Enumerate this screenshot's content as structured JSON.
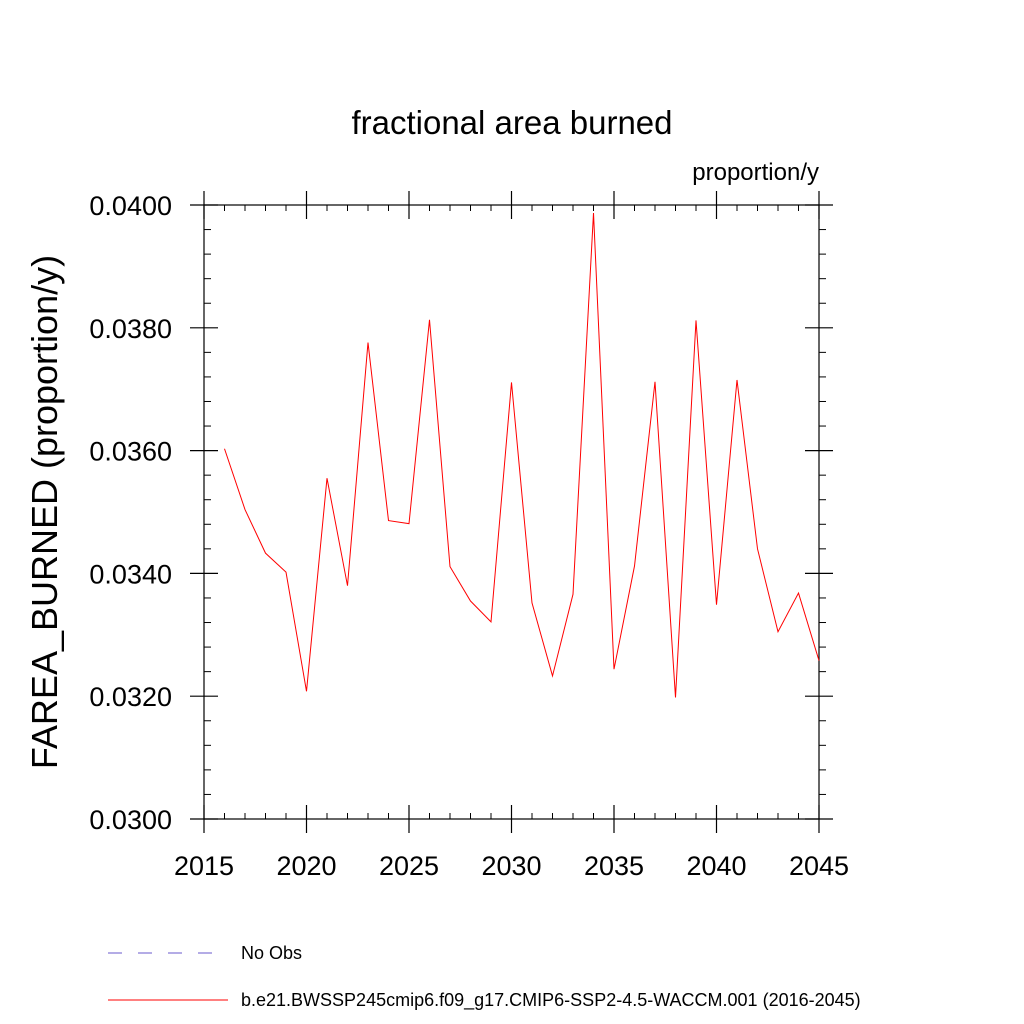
{
  "chart_data": {
    "type": "line",
    "title": "fractional area burned",
    "units_label": "proportion/y",
    "ylabel": "FAREA_BURNED  (proportion/y)",
    "xlabel": "",
    "xlim": [
      2015,
      2045
    ],
    "ylim": [
      0.03,
      0.04
    ],
    "x_ticks": [
      2015,
      2020,
      2025,
      2030,
      2035,
      2040,
      2045
    ],
    "x_tick_labels": [
      "2015",
      "2020",
      "2025",
      "2030",
      "2035",
      "2040",
      "2045"
    ],
    "y_ticks": [
      0.03,
      0.032,
      0.034,
      0.036,
      0.038,
      0.04
    ],
    "y_tick_labels": [
      "0.0300",
      "0.0320",
      "0.0340",
      "0.0360",
      "0.0380",
      "0.0400"
    ],
    "grid": false,
    "legend_position": "bottom",
    "series": [
      {
        "name": "b.e21.BWSSP245cmip6.f09_g17.CMIP6-SSP2-4.5-WACCM.001 (2016-2045)",
        "color": "#ff0000",
        "style": "solid",
        "x": [
          2016,
          2017,
          2018,
          2019,
          2020,
          2021,
          2022,
          2023,
          2024,
          2025,
          2026,
          2027,
          2028,
          2029,
          2030,
          2031,
          2032,
          2033,
          2034,
          2035,
          2036,
          2037,
          2038,
          2039,
          2040,
          2041,
          2042,
          2043,
          2044,
          2045
        ],
        "values": [
          0.03603,
          0.03504,
          0.03433,
          0.03402,
          0.03208,
          0.03555,
          0.0338,
          0.03776,
          0.03486,
          0.03481,
          0.03813,
          0.03411,
          0.03355,
          0.03321,
          0.03711,
          0.03352,
          0.03233,
          0.03366,
          0.03987,
          0.03244,
          0.03412,
          0.03712,
          0.03198,
          0.03812,
          0.03349,
          0.03715,
          0.0344,
          0.03305,
          0.03368,
          0.03258
        ]
      }
    ],
    "legend": [
      {
        "label": "No Obs",
        "color": "#6a5acd",
        "style": "dashed"
      },
      {
        "label": "b.e21.BWSSP245cmip6.f09_g17.CMIP6-SSP2-4.5-WACCM.001 (2016-2045)",
        "color": "#ff0000",
        "style": "solid"
      }
    ]
  }
}
